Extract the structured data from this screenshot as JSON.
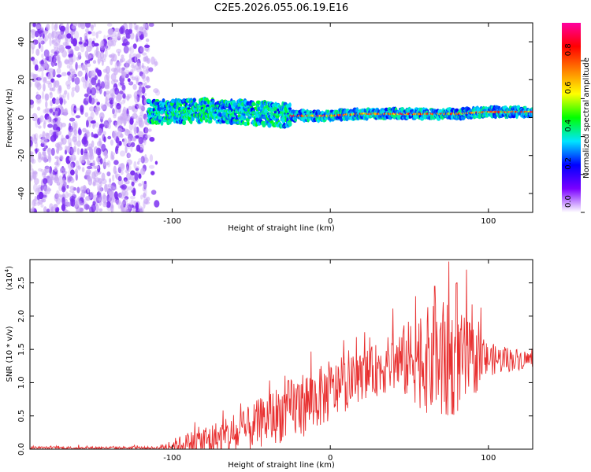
{
  "title": "C2E5.2026.055.06.19.E16",
  "chart_data": [
    {
      "type": "heatmap",
      "name": "spectrogram",
      "xlabel": "Height of straight line (km)",
      "ylabel": "Frequency (Hz)",
      "xlim": [
        -190,
        128
      ],
      "ylim": [
        -50,
        50
      ],
      "xticks": [
        -100,
        0,
        100
      ],
      "yticks": [
        -40,
        -20,
        0,
        20,
        40
      ],
      "noise_region_x": [
        -190,
        -115
      ],
      "signal_trace": [
        {
          "x": -115,
          "y": 3
        },
        {
          "x": -100,
          "y": 3
        },
        {
          "x": -80,
          "y": 4
        },
        {
          "x": -60,
          "y": 3
        },
        {
          "x": -40,
          "y": 2
        },
        {
          "x": -25,
          "y": 1
        },
        {
          "x": -10,
          "y": 1
        },
        {
          "x": 0,
          "y": 1
        },
        {
          "x": 20,
          "y": 2
        },
        {
          "x": 40,
          "y": 2
        },
        {
          "x": 60,
          "y": 2
        },
        {
          "x": 80,
          "y": 2
        },
        {
          "x": 100,
          "y": 3
        },
        {
          "x": 128,
          "y": 3
        }
      ],
      "colorbar": {
        "label": "Normalized spectral amplitude",
        "range": [
          0,
          1
        ],
        "ticks": [
          0.0,
          0.2,
          0.4,
          0.6,
          0.8
        ],
        "tick_labels": [
          "0.0",
          "0.2",
          "0.4",
          "0.6",
          "0.8"
        ],
        "colors": [
          "#ffffff",
          "#7b00ff",
          "#0000ff",
          "#00e5ff",
          "#00ff00",
          "#ffff00",
          "#ff8000",
          "#ff0000",
          "#ff00a0"
        ]
      }
    },
    {
      "type": "line",
      "name": "snr",
      "xlabel": "Height of straight line (km)",
      "ylabel": "SNR (10 * v/v)",
      "scale_label": "(x10",
      "scale_exp": "4",
      "scale_suffix": ")",
      "xlim": [
        -190,
        128
      ],
      "ylim": [
        0,
        2.85
      ],
      "xticks": [
        -100,
        0,
        100
      ],
      "yticks": [
        0.0,
        0.5,
        1.0,
        1.5,
        2.0,
        2.5
      ],
      "ytick_labels": [
        "0.0",
        "0.5",
        "1.0",
        "1.5",
        "2.0",
        "2.5"
      ],
      "line_color": "#e83030",
      "envelope": [
        {
          "x": -190,
          "base": 0.02,
          "amp": 0.02
        },
        {
          "x": -110,
          "base": 0.02,
          "amp": 0.02
        },
        {
          "x": -100,
          "base": 0.05,
          "amp": 0.1
        },
        {
          "x": -80,
          "base": 0.12,
          "amp": 0.25
        },
        {
          "x": -60,
          "base": 0.2,
          "amp": 0.3
        },
        {
          "x": -40,
          "base": 0.45,
          "amp": 0.4
        },
        {
          "x": -20,
          "base": 0.65,
          "amp": 0.5
        },
        {
          "x": 0,
          "base": 0.85,
          "amp": 0.45
        },
        {
          "x": 20,
          "base": 1.1,
          "amp": 0.35
        },
        {
          "x": 40,
          "base": 1.3,
          "amp": 0.45
        },
        {
          "x": 55,
          "base": 1.35,
          "amp": 0.7
        },
        {
          "x": 70,
          "base": 1.3,
          "amp": 0.95
        },
        {
          "x": 85,
          "base": 1.3,
          "amp": 0.7
        },
        {
          "x": 100,
          "base": 1.35,
          "amp": 0.25
        },
        {
          "x": 128,
          "base": 1.35,
          "amp": 0.12
        }
      ],
      "peaks": [
        {
          "x": 75,
          "y": 2.82
        },
        {
          "x": 86,
          "y": 2.7
        },
        {
          "x": 54,
          "y": 2.3
        },
        {
          "x": 66,
          "y": 2.45
        },
        {
          "x": 80,
          "y": 2.5
        }
      ]
    }
  ]
}
